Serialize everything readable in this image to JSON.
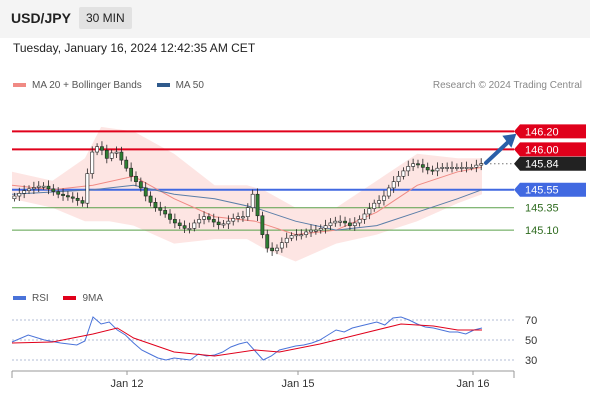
{
  "header": {
    "symbol": "USD/JPY",
    "timeframe": "30 MIN"
  },
  "timestamp": "Tuesday, January 16, 2024 12:42:35 AM CET",
  "credit": "Research © 2024 Trading Central",
  "colors": {
    "resistance": "#e0001b",
    "pivot": "#4169e1",
    "support": "#5aa04a",
    "bb_fill": "#fde0de",
    "ma20": "#f08a84",
    "ma50": "#5b7ea8",
    "candle": "#2e7d32",
    "rsi": "#4a73d9",
    "rsi_ma": "#e0001b",
    "arrow": "#2a5fa8"
  },
  "chart_data": [
    {
      "type": "candlestick",
      "title": "USD/JPY",
      "timeframe": "30 MIN",
      "legend": [
        "MA 20 + Bollinger Bands",
        "MA 50"
      ],
      "x_tick_labels": [
        "Jan 12",
        "Jan 15",
        "Jan 16"
      ],
      "ylim": [
        144.6,
        146.55
      ],
      "levels": [
        {
          "value": 146.2,
          "label": "146.20",
          "kind": "resistance"
        },
        {
          "value": 146.0,
          "label": "146.00",
          "kind": "resistance"
        },
        {
          "value": 145.84,
          "label": "145.84",
          "kind": "last"
        },
        {
          "value": 145.55,
          "label": "145.55",
          "kind": "pivot"
        },
        {
          "value": 145.35,
          "label": "145.35",
          "kind": "support"
        },
        {
          "value": 145.1,
          "label": "145.10",
          "kind": "support"
        }
      ],
      "price_path": [
        [
          0,
          145.45
        ],
        [
          4,
          145.55
        ],
        [
          8,
          145.6
        ],
        [
          12,
          145.5
        ],
        [
          16,
          145.45
        ],
        [
          18,
          145.4
        ],
        [
          20,
          145.95
        ],
        [
          22,
          146.05
        ],
        [
          24,
          145.9
        ],
        [
          26,
          146.0
        ],
        [
          28,
          145.85
        ],
        [
          30,
          145.7
        ],
        [
          32,
          145.6
        ],
        [
          34,
          145.45
        ],
        [
          36,
          145.35
        ],
        [
          38,
          145.3
        ],
        [
          40,
          145.2
        ],
        [
          42,
          145.15
        ],
        [
          44,
          145.1
        ],
        [
          46,
          145.2
        ],
        [
          48,
          145.25
        ],
        [
          50,
          145.2
        ],
        [
          52,
          145.15
        ],
        [
          54,
          145.2
        ],
        [
          56,
          145.25
        ],
        [
          58,
          145.25
        ],
        [
          60,
          145.5
        ],
        [
          62,
          145.1
        ],
        [
          64,
          144.85
        ],
        [
          66,
          144.9
        ],
        [
          68,
          145.0
        ],
        [
          70,
          145.05
        ],
        [
          72,
          145.05
        ],
        [
          74,
          145.1
        ],
        [
          76,
          145.1
        ],
        [
          78,
          145.15
        ],
        [
          80,
          145.2
        ],
        [
          82,
          145.2
        ],
        [
          84,
          145.15
        ],
        [
          86,
          145.2
        ],
        [
          88,
          145.3
        ],
        [
          90,
          145.4
        ],
        [
          92,
          145.45
        ],
        [
          94,
          145.6
        ],
        [
          96,
          145.7
        ],
        [
          98,
          145.8
        ],
        [
          100,
          145.85
        ],
        [
          102,
          145.8
        ],
        [
          104,
          145.75
        ],
        [
          106,
          145.8
        ],
        [
          108,
          145.8
        ],
        [
          110,
          145.8
        ],
        [
          112,
          145.8
        ],
        [
          114,
          145.8
        ],
        [
          116,
          145.84
        ]
      ],
      "ma20": [
        [
          0,
          145.6
        ],
        [
          10,
          145.55
        ],
        [
          20,
          145.6
        ],
        [
          30,
          145.7
        ],
        [
          40,
          145.45
        ],
        [
          50,
          145.25
        ],
        [
          60,
          145.2
        ],
        [
          70,
          145.05
        ],
        [
          80,
          145.1
        ],
        [
          90,
          145.3
        ],
        [
          100,
          145.6
        ],
        [
          110,
          145.75
        ],
        [
          116,
          145.8
        ]
      ],
      "ma50": [
        [
          0,
          145.5
        ],
        [
          20,
          145.55
        ],
        [
          30,
          145.6
        ],
        [
          40,
          145.5
        ],
        [
          50,
          145.45
        ],
        [
          60,
          145.35
        ],
        [
          70,
          145.2
        ],
        [
          80,
          145.1
        ],
        [
          90,
          145.15
        ],
        [
          100,
          145.3
        ],
        [
          110,
          145.45
        ],
        [
          116,
          145.55
        ]
      ],
      "bb_upper": [
        [
          0,
          145.75
        ],
        [
          10,
          145.65
        ],
        [
          18,
          145.9
        ],
        [
          22,
          146.25
        ],
        [
          30,
          146.2
        ],
        [
          40,
          145.95
        ],
        [
          50,
          145.6
        ],
        [
          58,
          145.6
        ],
        [
          62,
          145.55
        ],
        [
          70,
          145.35
        ],
        [
          80,
          145.35
        ],
        [
          90,
          145.65
        ],
        [
          100,
          145.95
        ],
        [
          110,
          145.9
        ],
        [
          116,
          145.9
        ]
      ],
      "bb_lower": [
        [
          0,
          145.45
        ],
        [
          10,
          145.35
        ],
        [
          18,
          145.2
        ],
        [
          24,
          145.2
        ],
        [
          30,
          145.15
        ],
        [
          40,
          144.95
        ],
        [
          50,
          145.0
        ],
        [
          58,
          145.0
        ],
        [
          62,
          144.9
        ],
        [
          70,
          144.75
        ],
        [
          80,
          144.95
        ],
        [
          90,
          145.05
        ],
        [
          100,
          145.2
        ],
        [
          110,
          145.4
        ],
        [
          116,
          145.5
        ]
      ],
      "projection": {
        "from": [
          116,
          145.85
        ],
        "to": [
          123,
          146.14
        ]
      }
    },
    {
      "type": "line",
      "legend": [
        "RSI",
        "9MA"
      ],
      "y_tick_labels": [
        "70",
        "50",
        "30"
      ],
      "ylim": [
        20,
        80
      ],
      "levels": [
        70,
        50,
        30
      ],
      "rsi": [
        [
          0,
          48
        ],
        [
          4,
          55
        ],
        [
          8,
          50
        ],
        [
          12,
          47
        ],
        [
          16,
          45
        ],
        [
          18,
          49
        ],
        [
          20,
          73
        ],
        [
          22,
          66
        ],
        [
          24,
          68
        ],
        [
          26,
          60
        ],
        [
          28,
          55
        ],
        [
          30,
          47
        ],
        [
          32,
          40
        ],
        [
          34,
          36
        ],
        [
          36,
          32
        ],
        [
          38,
          30
        ],
        [
          40,
          32
        ],
        [
          42,
          31
        ],
        [
          44,
          30
        ],
        [
          46,
          36
        ],
        [
          48,
          34
        ],
        [
          50,
          35
        ],
        [
          52,
          38
        ],
        [
          54,
          43
        ],
        [
          56,
          46
        ],
        [
          58,
          48
        ],
        [
          60,
          39
        ],
        [
          62,
          30
        ],
        [
          64,
          34
        ],
        [
          66,
          40
        ],
        [
          68,
          42
        ],
        [
          70,
          44
        ],
        [
          72,
          45
        ],
        [
          74,
          47
        ],
        [
          76,
          50
        ],
        [
          78,
          55
        ],
        [
          80,
          60
        ],
        [
          82,
          58
        ],
        [
          84,
          62
        ],
        [
          86,
          64
        ],
        [
          88,
          66
        ],
        [
          90,
          68
        ],
        [
          92,
          65
        ],
        [
          94,
          72
        ],
        [
          96,
          73
        ],
        [
          98,
          70
        ],
        [
          100,
          66
        ],
        [
          102,
          63
        ],
        [
          104,
          62
        ],
        [
          106,
          60
        ],
        [
          108,
          58
        ],
        [
          110,
          58
        ],
        [
          112,
          56
        ],
        [
          114,
          60
        ],
        [
          116,
          62
        ]
      ],
      "rsi_ma": [
        [
          0,
          47
        ],
        [
          10,
          48
        ],
        [
          20,
          56
        ],
        [
          26,
          62
        ],
        [
          30,
          52
        ],
        [
          40,
          38
        ],
        [
          50,
          34
        ],
        [
          60,
          40
        ],
        [
          66,
          38
        ],
        [
          76,
          46
        ],
        [
          86,
          56
        ],
        [
          96,
          66
        ],
        [
          104,
          64
        ],
        [
          110,
          60
        ],
        [
          116,
          60
        ]
      ]
    }
  ]
}
